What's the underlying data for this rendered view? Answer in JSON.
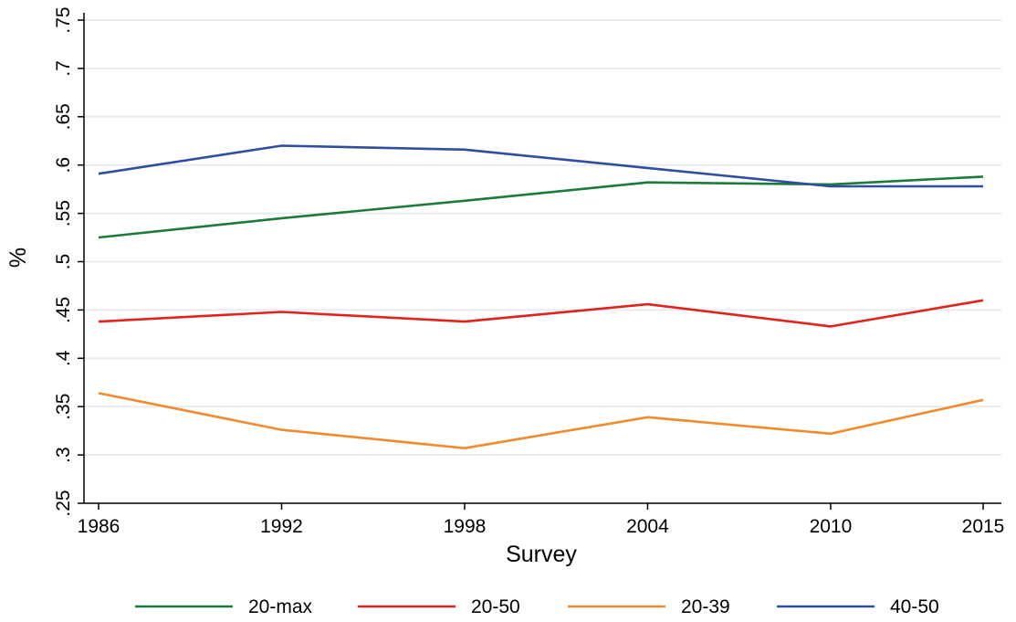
{
  "chart_data": {
    "type": "line",
    "title": "",
    "xlabel": "Survey",
    "ylabel": "%",
    "x": [
      1986,
      1992,
      1998,
      2004,
      2010,
      2015
    ],
    "x_tick_labels": [
      "1986",
      "1992",
      "1998",
      "2004",
      "2010",
      "2015"
    ],
    "ylim": [
      0.25,
      0.75
    ],
    "y_ticks": [
      0.25,
      0.3,
      0.35,
      0.4,
      0.45,
      0.5,
      0.55,
      0.6,
      0.65,
      0.7,
      0.75
    ],
    "y_tick_labels": [
      ".25",
      ".3",
      ".35",
      ".4",
      ".45",
      ".5",
      ".55",
      ".6",
      ".65",
      ".7",
      ".75"
    ],
    "grid": true,
    "legend_position": "bottom",
    "series": [
      {
        "name": "20-max",
        "color": "#1e7a3a",
        "values": [
          0.525,
          0.545,
          0.563,
          0.582,
          0.58,
          0.588
        ]
      },
      {
        "name": "20-50",
        "color": "#e0231c",
        "values": [
          0.438,
          0.448,
          0.438,
          0.456,
          0.433,
          0.46
        ]
      },
      {
        "name": "20-39",
        "color": "#f28a2e",
        "values": [
          0.364,
          0.326,
          0.307,
          0.339,
          0.322,
          0.357
        ]
      },
      {
        "name": "40-50",
        "color": "#2d4f9e",
        "values": [
          0.591,
          0.62,
          0.616,
          0.597,
          0.578,
          0.578
        ]
      }
    ]
  }
}
